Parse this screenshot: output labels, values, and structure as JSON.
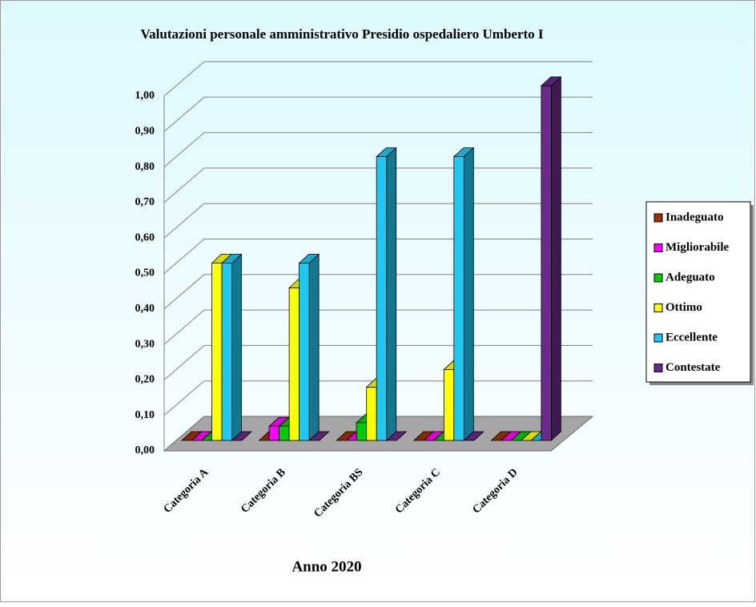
{
  "chart_data": {
    "type": "bar3d",
    "title": "Valutazioni personale amministrativo Presidio ospedaliero Umberto I",
    "x_label": "Anno 2020",
    "categories": [
      "Categoria A",
      "Categoria B",
      "Categoria BS",
      "Categoria C",
      "Categoria D"
    ],
    "series": [
      {
        "name": "Inadeguato",
        "color": "#993300",
        "values": [
          0,
          0,
          0,
          0,
          0
        ]
      },
      {
        "name": "Migliorabile",
        "color": "#ff00ff",
        "values": [
          0,
          0.04,
          0,
          0,
          0
        ]
      },
      {
        "name": "Adeguato",
        "color": "#00cc00",
        "values": [
          0,
          0.04,
          0.05,
          0,
          0
        ]
      },
      {
        "name": "Ottimo",
        "color": "#ffff00",
        "values": [
          0.5,
          0.43,
          0.15,
          0.2,
          0
        ]
      },
      {
        "name": "Eccellente",
        "color": "#1ec8f0",
        "values": [
          0.5,
          0.5,
          0.8,
          0.8,
          0
        ]
      },
      {
        "name": "Contestate",
        "color": "#6a2a8a",
        "values": [
          0,
          0,
          0,
          0,
          1.0
        ]
      }
    ],
    "ylim": [
      0,
      1.0
    ],
    "yticks": [
      {
        "value": 0,
        "label": "0,00"
      },
      {
        "value": 0.1,
        "label": "0,10"
      },
      {
        "value": 0.2,
        "label": "0,20"
      },
      {
        "value": 0.3,
        "label": "0,30"
      },
      {
        "value": 0.4,
        "label": "0,40"
      },
      {
        "value": 0.5,
        "label": "0,50"
      },
      {
        "value": 0.6,
        "label": "0,60"
      },
      {
        "value": 0.7,
        "label": "0,70"
      },
      {
        "value": 0.8,
        "label": "0,80"
      },
      {
        "value": 0.9,
        "label": "0,90"
      },
      {
        "value": 1.0,
        "label": "1,00"
      }
    ],
    "grid": true,
    "legend": "right"
  }
}
